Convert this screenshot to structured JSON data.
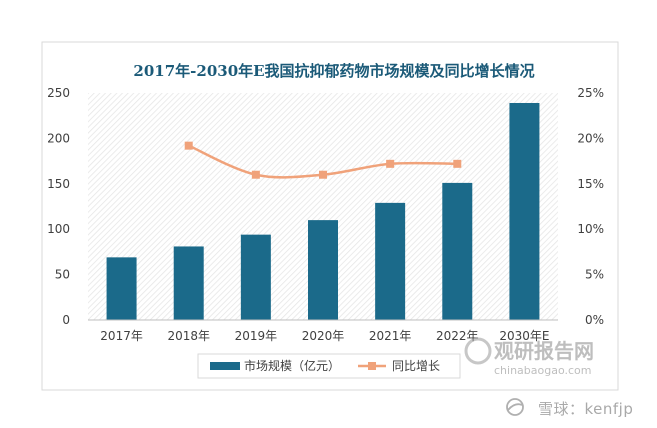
{
  "chart_data": {
    "type": "bar",
    "title": "2017年-2030年E我国抗抑郁药物市场规模及同比增长情况",
    "categories": [
      "2017年",
      "2018年",
      "2019年",
      "2020年",
      "2021年",
      "2022年",
      "2030年E"
    ],
    "series": [
      {
        "name": "市场规模（亿元）",
        "type": "bar",
        "axis": "left",
        "values": [
          69,
          81,
          94,
          110,
          129,
          151,
          239
        ]
      },
      {
        "name": "同比增长",
        "type": "line",
        "axis": "right",
        "values": [
          null,
          19.2,
          16.0,
          16.0,
          17.2,
          17.2,
          null
        ]
      }
    ],
    "ylim": [
      0,
      250
    ],
    "yticks": [
      "0",
      "50",
      "100",
      "150",
      "200",
      "250"
    ],
    "y2lim": [
      0,
      25
    ],
    "y2ticks": [
      "0%",
      "5%",
      "10%",
      "15%",
      "20%",
      "25%"
    ],
    "legend_position": "bottom",
    "colors": {
      "bar": "#1b6a8a",
      "line": "#f0a27a",
      "title": "#1b5a78",
      "axis_text": "#404040"
    }
  },
  "watermarks": {
    "logo_text": "观研报告网",
    "logo_url_text": "chinabaogao.com",
    "footer": "雪球：kenfjp"
  }
}
